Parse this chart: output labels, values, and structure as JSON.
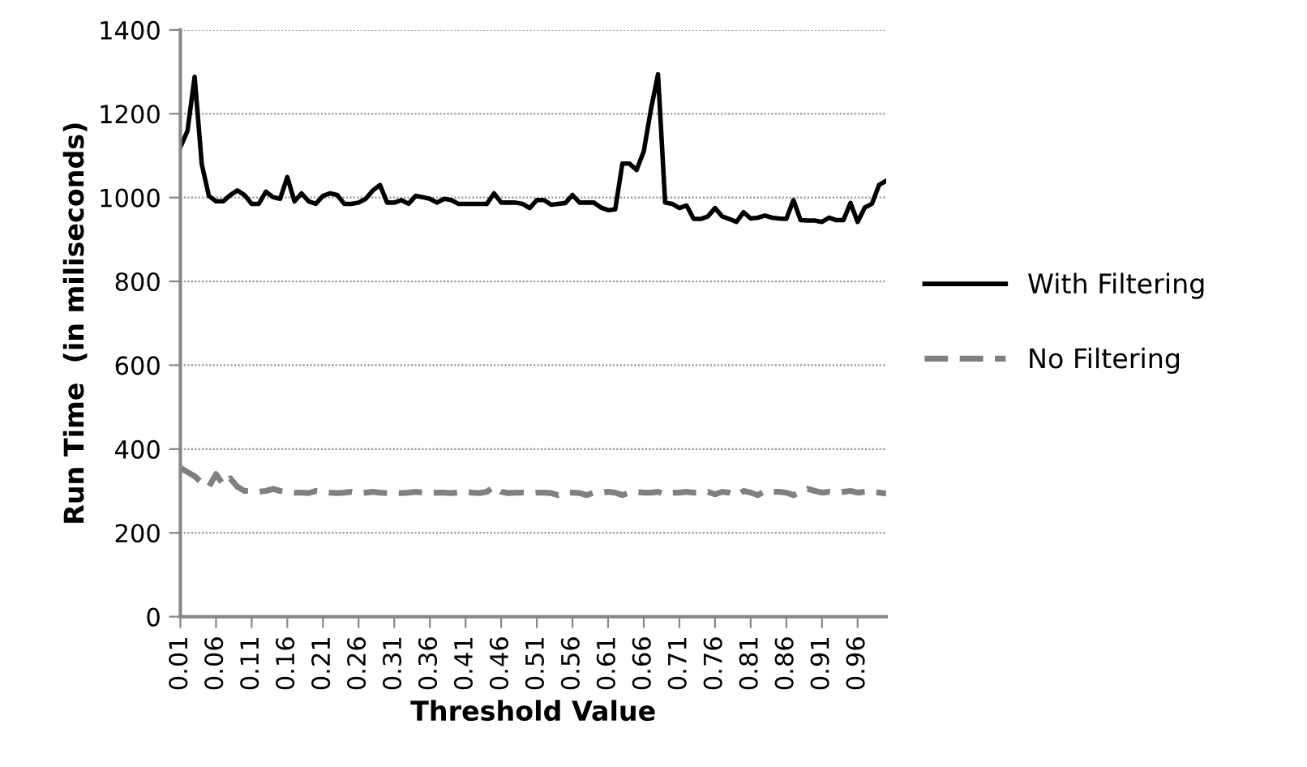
{
  "chart_data": {
    "type": "line",
    "xlabel": "Threshold Value",
    "ylabel": "Run Time  (in miliseconds)",
    "categories": [
      "0.01",
      null,
      null,
      null,
      null,
      "0.06",
      null,
      null,
      null,
      null,
      "0.11",
      null,
      null,
      null,
      null,
      "0.16",
      null,
      null,
      null,
      null,
      "0.21",
      null,
      null,
      null,
      null,
      "0.26",
      null,
      null,
      null,
      null,
      "0.31",
      null,
      null,
      null,
      null,
      "0.36",
      null,
      null,
      null,
      null,
      "0.41",
      null,
      null,
      null,
      null,
      "0.46",
      null,
      null,
      null,
      null,
      "0.51",
      null,
      null,
      null,
      null,
      "0.56",
      null,
      null,
      null,
      null,
      "0.61",
      null,
      null,
      null,
      null,
      "0.66",
      null,
      null,
      null,
      null,
      "0.71",
      null,
      null,
      null,
      null,
      "0.76",
      null,
      null,
      null,
      null,
      "0.81",
      null,
      null,
      null,
      null,
      "0.86",
      null,
      null,
      null,
      null,
      "0.91",
      null,
      null,
      null,
      null,
      "0.96",
      null,
      null,
      null,
      null
    ],
    "ylim": [
      0,
      1400
    ],
    "yticks": [
      0,
      200,
      400,
      600,
      800,
      1000,
      1200,
      1400
    ],
    "grid": "y",
    "legend": "right",
    "series": [
      {
        "name": "With Filtering",
        "color": "#000000",
        "line_style": "solid",
        "values": [
          1120,
          1159,
          1288,
          1080,
          1004,
          991,
          991,
          1006,
          1017,
          1006,
          985,
          985,
          1014,
          1001,
          997,
          1049,
          991,
          1010,
          991,
          985,
          1004,
          1010,
          1006,
          985,
          985,
          988,
          997,
          1017,
          1030,
          988,
          988,
          994,
          985,
          1004,
          1001,
          997,
          988,
          997,
          994,
          985,
          985,
          985,
          985,
          985,
          1010,
          988,
          988,
          988,
          985,
          975,
          994,
          994,
          983,
          985,
          987,
          1006,
          988,
          988,
          988,
          976,
          970,
          972,
          1081,
          1081,
          1066,
          1110,
          1210,
          1294,
          988,
          985,
          975,
          981,
          949,
          949,
          955,
          975,
          955,
          949,
          942,
          965,
          950,
          952,
          957,
          952,
          950,
          949,
          994,
          946,
          945,
          945,
          942,
          952,
          946,
          946,
          987,
          942,
          976,
          985,
          1030,
          1040
        ]
      },
      {
        "name": "No Filtering",
        "color": "#808080",
        "line_style": "dashed",
        "values": [
          355,
          345,
          335,
          320,
          310,
          340,
          315,
          330,
          310,
          300,
          300,
          298,
          300,
          305,
          300,
          298,
          296,
          296,
          295,
          300,
          298,
          296,
          295,
          296,
          298,
          295,
          296,
          298,
          296,
          295,
          296,
          295,
          296,
          298,
          296,
          295,
          296,
          296,
          295,
          296,
          298,
          296,
          295,
          298,
          310,
          298,
          295,
          296,
          296,
          295,
          296,
          296,
          295,
          290,
          296,
          296,
          295,
          290,
          296,
          296,
          298,
          296,
          290,
          296,
          298,
          296,
          296,
          298,
          292,
          296,
          296,
          298,
          296,
          296,
          298,
          292,
          298,
          296,
          290,
          300,
          296,
          290,
          300,
          298,
          298,
          296,
          290,
          298,
          305,
          300,
          296,
          298,
          296,
          298,
          300,
          296,
          298,
          298,
          296,
          294
        ]
      }
    ]
  }
}
